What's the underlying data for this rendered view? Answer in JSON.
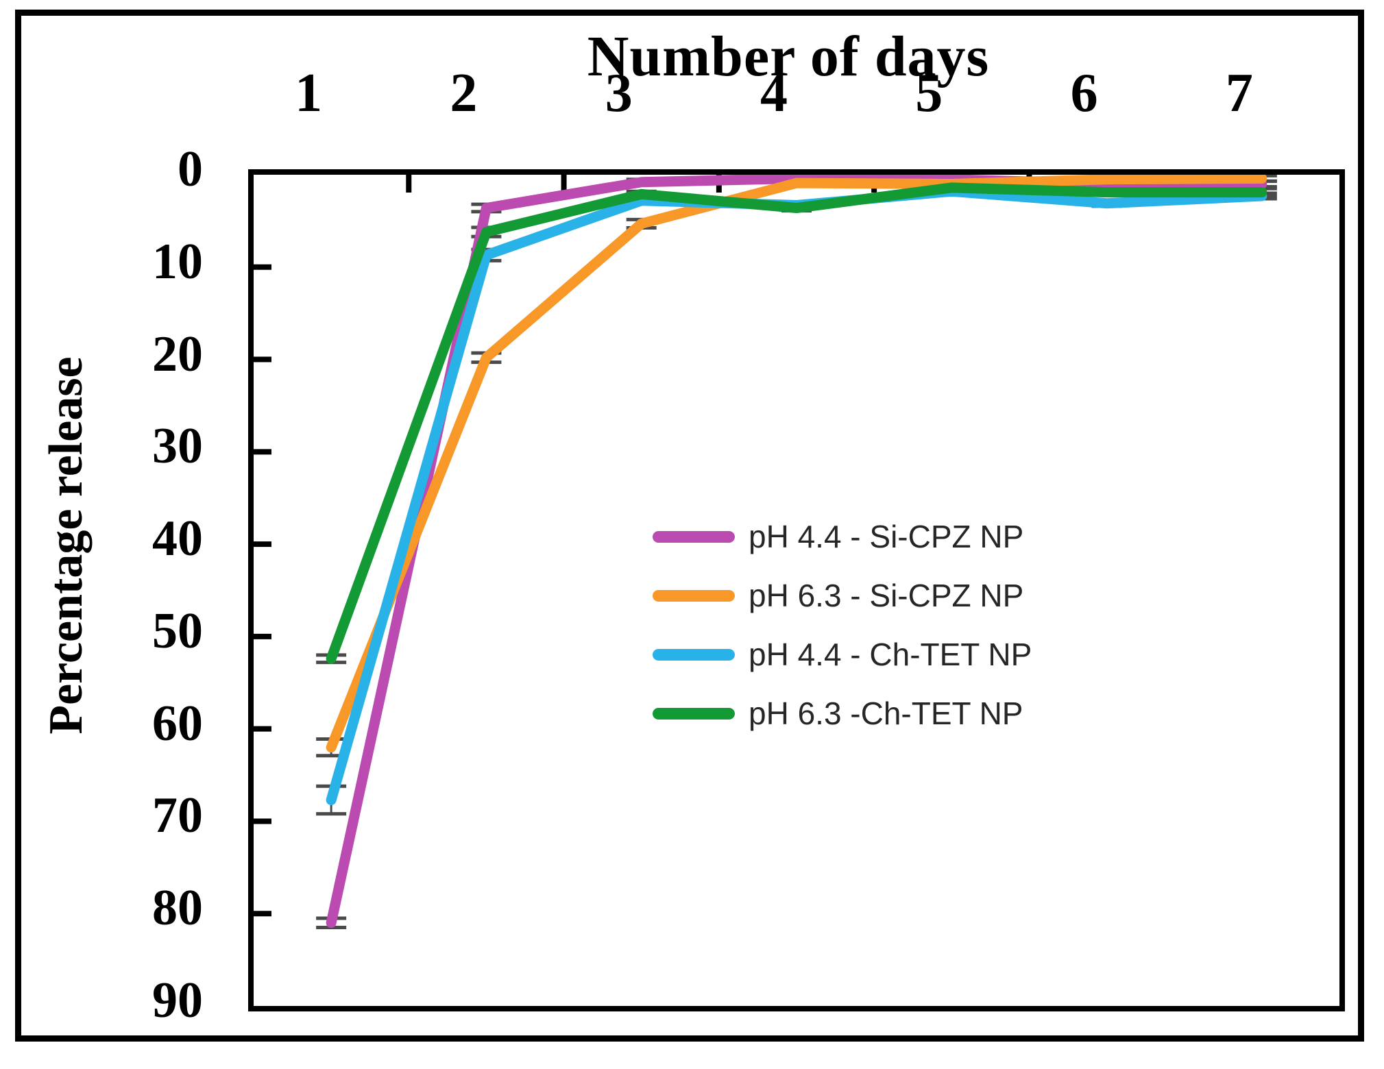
{
  "figure": {
    "title": "Number of days",
    "y_axis_title": "Percentage release"
  },
  "axes": {
    "x_tick_labels": [
      "1",
      "2",
      "3",
      "4",
      "5",
      "6",
      "7"
    ],
    "y_tick_labels": [
      "0",
      "10",
      "20",
      "30",
      "40",
      "50",
      "60",
      "70",
      "80",
      "90"
    ]
  },
  "legend": {
    "items": [
      {
        "label": "pH 4.4 - Si-CPZ NP",
        "color": "#bb4bb0"
      },
      {
        "label": "pH 6.3 - Si-CPZ NP",
        "color": "#f89828"
      },
      {
        "label": "pH 4.4 - Ch-TET NP",
        "color": "#29b2e8"
      },
      {
        "label": "pH 6.3 -Ch-TET NP",
        "color": "#149a35"
      }
    ]
  },
  "chart_data": {
    "type": "line",
    "title": "Number of days",
    "xlabel": "Number of days",
    "ylabel": "Percentage release",
    "x": [
      1,
      2,
      3,
      4,
      5,
      6,
      7
    ],
    "ylim": [
      0,
      90
    ],
    "y_axis_inverted": true,
    "grid": false,
    "legend_position": "center-right-inside",
    "error_bar_color": "#4a4a4a",
    "series": [
      {
        "name": "pH 4.4 - Si-CPZ NP",
        "color": "#bb4bb0",
        "values": [
          81.0,
          3.6,
          0.8,
          0.4,
          0.5,
          1.0,
          1.0
        ],
        "errors": [
          0.5,
          0.4,
          0.3,
          0.25,
          0.25,
          0.25,
          0.3
        ]
      },
      {
        "name": "pH 6.3 - Si-CPZ NP",
        "color": "#f89828",
        "values": [
          62.0,
          19.8,
          5.3,
          0.9,
          1.0,
          0.5,
          0.4
        ],
        "errors": [
          0.9,
          0.5,
          0.45,
          0.25,
          0.25,
          0.25,
          0.3
        ]
      },
      {
        "name": "pH 4.4 - Ch-TET NP",
        "color": "#29b2e8",
        "values": [
          67.7,
          8.7,
          2.8,
          3.3,
          1.8,
          3.1,
          2.3
        ],
        "errors": [
          1.5,
          0.6,
          0.3,
          0.3,
          0.4,
          0.3,
          0.3
        ]
      },
      {
        "name": "pH 6.3 -Ch-TET NP",
        "color": "#149a35",
        "values": [
          52.4,
          6.2,
          2.1,
          3.6,
          1.4,
          1.9,
          1.9
        ],
        "errors": [
          0.4,
          0.5,
          0.3,
          0.3,
          0.35,
          0.3,
          0.4
        ]
      }
    ]
  }
}
